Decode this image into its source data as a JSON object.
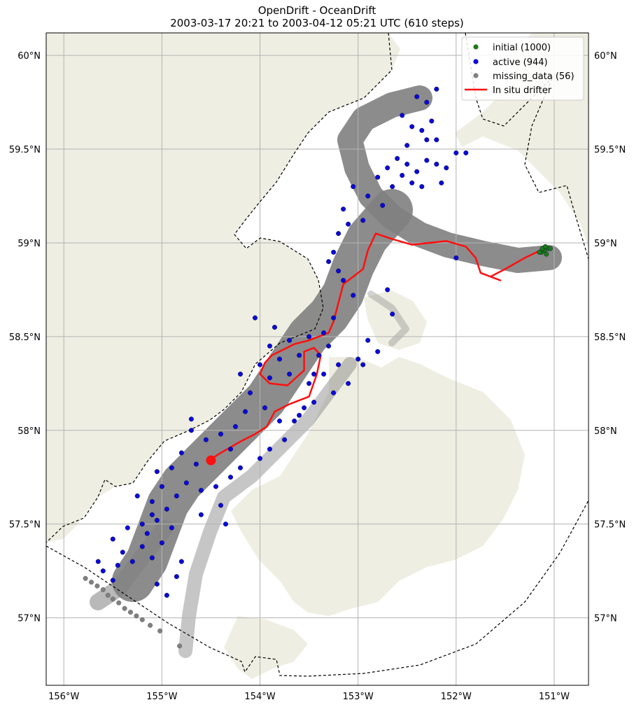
{
  "chart_data": {
    "type": "scatter",
    "title": "OpenDrift - OceanDrift",
    "subtitle": "2003-03-17 20:21 to 2003-04-12 05:21 UTC (610 steps)",
    "xlim": [
      -156.18,
      -150.65
    ],
    "ylim": [
      56.64,
      60.12
    ],
    "x_ticks": [
      -156,
      -155,
      -154,
      -153,
      -152,
      -151
    ],
    "x_tick_labels": [
      "156°W",
      "155°W",
      "154°W",
      "153°W",
      "152°W",
      "151°W"
    ],
    "y_ticks": [
      57.0,
      57.5,
      58.0,
      58.5,
      59.0,
      59.5,
      60.0
    ],
    "y_tick_labels": [
      "57°N",
      "57.5°N",
      "58°N",
      "58.5°N",
      "59°N",
      "59.5°N",
      "60°N"
    ],
    "grid": true,
    "legend_position": "top-right",
    "colors": {
      "land": "#eeeee2",
      "trajectory": "#808080",
      "initial": "#1a7a1a",
      "active": "#0a0ad8",
      "missing": "#808080",
      "drifter": "#ff0f0f",
      "grid": "#b3b3b3"
    },
    "series": [
      {
        "name": "initial (1000)",
        "marker": "point",
        "points": [
          [
            -151.06,
            58.97
          ],
          [
            -151.1,
            58.96
          ],
          [
            -151.13,
            58.95
          ],
          [
            -151.08,
            58.94
          ],
          [
            -151.04,
            58.97
          ],
          [
            -151.12,
            58.97
          ],
          [
            -151.09,
            58.98
          ],
          [
            -151.15,
            58.95
          ]
        ]
      },
      {
        "name": "active (944)",
        "marker": "point",
        "points": [
          [
            -152.4,
            59.78
          ],
          [
            -152.3,
            59.75
          ],
          [
            -152.2,
            59.82
          ],
          [
            -152.55,
            59.68
          ],
          [
            -152.25,
            59.65
          ],
          [
            -152.35,
            59.6
          ],
          [
            -152.2,
            59.55
          ],
          [
            -152.45,
            59.62
          ],
          [
            -152.3,
            59.55
          ],
          [
            -152.5,
            59.52
          ],
          [
            -152.6,
            59.45
          ],
          [
            -152.5,
            59.42
          ],
          [
            -152.4,
            59.38
          ],
          [
            -152.7,
            59.4
          ],
          [
            -152.3,
            59.44
          ],
          [
            -152.2,
            59.42
          ],
          [
            -152.8,
            59.35
          ],
          [
            -152.55,
            59.36
          ],
          [
            -152.45,
            59.32
          ],
          [
            -152.65,
            59.3
          ],
          [
            -152.1,
            59.4
          ],
          [
            -152.0,
            59.48
          ],
          [
            -152.35,
            59.3
          ],
          [
            -152.9,
            59.25
          ],
          [
            -153.05,
            59.3
          ],
          [
            -153.15,
            59.18
          ],
          [
            -153.1,
            59.1
          ],
          [
            -153.2,
            59.05
          ],
          [
            -153.25,
            58.95
          ],
          [
            -153.2,
            58.85
          ],
          [
            -153.15,
            58.8
          ],
          [
            -153.05,
            58.72
          ],
          [
            -153.25,
            58.6
          ],
          [
            -153.35,
            58.52
          ],
          [
            -153.3,
            58.45
          ],
          [
            -153.5,
            58.5
          ],
          [
            -153.7,
            58.48
          ],
          [
            -153.9,
            58.45
          ],
          [
            -153.6,
            58.4
          ],
          [
            -153.8,
            58.38
          ],
          [
            -154.0,
            58.35
          ],
          [
            -153.7,
            58.3
          ],
          [
            -153.9,
            58.28
          ],
          [
            -153.5,
            58.25
          ],
          [
            -153.35,
            58.3
          ],
          [
            -153.2,
            58.35
          ],
          [
            -153.0,
            58.38
          ],
          [
            -152.95,
            58.35
          ],
          [
            -153.1,
            58.25
          ],
          [
            -153.25,
            58.2
          ],
          [
            -153.45,
            58.15
          ],
          [
            -153.6,
            58.08
          ],
          [
            -153.8,
            58.05
          ],
          [
            -153.95,
            58.12
          ],
          [
            -154.1,
            58.2
          ],
          [
            -154.15,
            58.1
          ],
          [
            -154.25,
            58.02
          ],
          [
            -154.4,
            57.98
          ],
          [
            -154.55,
            57.95
          ],
          [
            -154.7,
            58.0
          ],
          [
            -154.3,
            57.9
          ],
          [
            -154.5,
            57.85
          ],
          [
            -154.65,
            57.82
          ],
          [
            -154.8,
            57.88
          ],
          [
            -154.9,
            57.8
          ],
          [
            -154.75,
            57.72
          ],
          [
            -154.6,
            57.68
          ],
          [
            -154.85,
            57.65
          ],
          [
            -155.0,
            57.7
          ],
          [
            -155.1,
            57.62
          ],
          [
            -154.95,
            57.58
          ],
          [
            -155.05,
            57.52
          ],
          [
            -154.9,
            57.48
          ],
          [
            -155.15,
            57.45
          ],
          [
            -155.0,
            57.4
          ],
          [
            -155.2,
            57.38
          ],
          [
            -155.1,
            57.32
          ],
          [
            -155.3,
            57.3
          ],
          [
            -155.45,
            57.28
          ],
          [
            -155.6,
            57.25
          ],
          [
            -155.5,
            57.2
          ],
          [
            -155.65,
            57.3
          ],
          [
            -155.4,
            57.35
          ],
          [
            -155.2,
            57.5
          ],
          [
            -155.1,
            57.55
          ],
          [
            -155.25,
            57.65
          ],
          [
            -154.45,
            57.7
          ],
          [
            -154.3,
            57.75
          ],
          [
            -154.2,
            57.8
          ],
          [
            -154.0,
            57.85
          ],
          [
            -153.9,
            57.9
          ],
          [
            -153.75,
            57.95
          ],
          [
            -153.65,
            58.05
          ],
          [
            -153.55,
            58.12
          ],
          [
            -153.45,
            58.3
          ],
          [
            -153.4,
            58.4
          ],
          [
            -152.9,
            58.48
          ],
          [
            -152.8,
            58.42
          ],
          [
            -152.65,
            58.62
          ],
          [
            -152.7,
            58.75
          ],
          [
            -152.0,
            58.92
          ],
          [
            -151.9,
            59.48
          ],
          [
            -152.15,
            59.32
          ],
          [
            -152.75,
            59.2
          ],
          [
            -152.95,
            59.12
          ],
          [
            -153.3,
            58.9
          ],
          [
            -154.05,
            58.6
          ],
          [
            -154.2,
            58.3
          ],
          [
            -153.85,
            58.55
          ],
          [
            -154.95,
            57.12
          ],
          [
            -155.05,
            57.18
          ],
          [
            -154.85,
            57.22
          ],
          [
            -154.6,
            57.55
          ],
          [
            -154.4,
            57.6
          ],
          [
            -155.35,
            57.48
          ],
          [
            -155.5,
            57.42
          ],
          [
            -154.7,
            58.06
          ],
          [
            -155.05,
            57.78
          ],
          [
            -154.35,
            57.5
          ],
          [
            -154.8,
            57.3
          ]
        ]
      },
      {
        "name": "missing_data (56)",
        "marker": "point",
        "points": [
          [
            -155.78,
            57.21
          ],
          [
            -155.72,
            57.19
          ],
          [
            -155.66,
            57.17
          ],
          [
            -155.6,
            57.15
          ],
          [
            -155.55,
            57.12
          ],
          [
            -155.5,
            57.1
          ],
          [
            -155.44,
            57.08
          ],
          [
            -155.38,
            57.05
          ],
          [
            -155.32,
            57.03
          ],
          [
            -155.26,
            57.01
          ],
          [
            -155.2,
            56.99
          ],
          [
            -155.12,
            56.96
          ],
          [
            -155.02,
            56.93
          ],
          [
            -154.82,
            56.85
          ]
        ]
      },
      {
        "name": "In situ drifter",
        "marker": "line",
        "points": [
          [
            -151.1,
            58.97
          ],
          [
            -151.3,
            58.92
          ],
          [
            -151.5,
            58.86
          ],
          [
            -151.65,
            58.82
          ],
          [
            -151.55,
            58.8
          ],
          [
            -151.75,
            58.84
          ],
          [
            -151.8,
            58.92
          ],
          [
            -151.9,
            58.98
          ],
          [
            -152.1,
            59.01
          ],
          [
            -152.45,
            58.99
          ],
          [
            -152.65,
            59.02
          ],
          [
            -152.82,
            59.05
          ],
          [
            -152.9,
            58.96
          ],
          [
            -152.95,
            58.86
          ],
          [
            -153.05,
            58.82
          ],
          [
            -153.15,
            58.78
          ],
          [
            -153.2,
            58.68
          ],
          [
            -153.25,
            58.58
          ],
          [
            -153.3,
            58.52
          ],
          [
            -153.5,
            58.48
          ],
          [
            -153.65,
            58.46
          ],
          [
            -153.88,
            58.4
          ],
          [
            -153.95,
            58.36
          ],
          [
            -154.0,
            58.3
          ],
          [
            -153.9,
            58.25
          ],
          [
            -153.72,
            58.24
          ],
          [
            -153.55,
            58.32
          ],
          [
            -153.55,
            58.42
          ],
          [
            -153.45,
            58.44
          ],
          [
            -153.38,
            58.4
          ],
          [
            -153.42,
            58.3
          ],
          [
            -153.5,
            58.18
          ],
          [
            -153.7,
            58.14
          ],
          [
            -153.85,
            58.1
          ],
          [
            -153.93,
            58.02
          ],
          [
            -154.05,
            57.98
          ],
          [
            -154.2,
            57.94
          ],
          [
            -154.4,
            57.88
          ],
          [
            -154.52,
            57.84
          ]
        ]
      }
    ],
    "drifter_end_marker": [
      -154.5,
      57.84
    ]
  }
}
